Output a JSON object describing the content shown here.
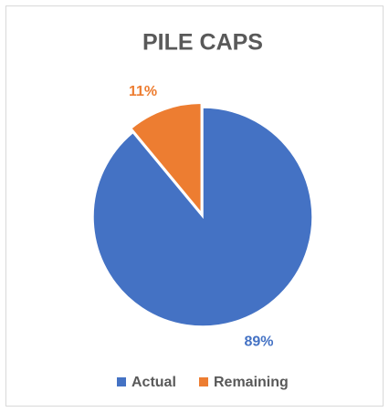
{
  "chart_data": {
    "type": "pie",
    "title": "PILE CAPS",
    "categories": [
      "Actual",
      "Remaining"
    ],
    "values": [
      89,
      11
    ],
    "value_labels": [
      "89%",
      "11%"
    ],
    "colors": [
      "#4472c4",
      "#ed7d31"
    ],
    "legend": "bottom"
  }
}
